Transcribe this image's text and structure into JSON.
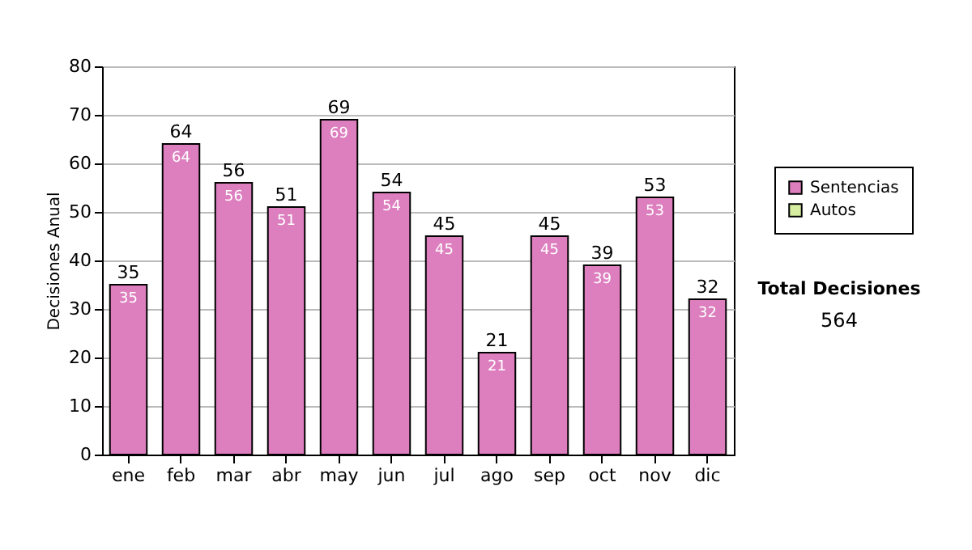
{
  "chart_data": {
    "type": "bar",
    "ylabel": "Decisiones Anual",
    "categories": [
      "ene",
      "feb",
      "mar",
      "abr",
      "may",
      "jun",
      "jul",
      "ago",
      "sep",
      "oct",
      "nov",
      "dic"
    ],
    "series": [
      {
        "name": "Sentencias",
        "color": "#dd7fbf",
        "values": [
          35,
          64,
          56,
          51,
          69,
          54,
          45,
          21,
          45,
          39,
          53,
          32
        ]
      },
      {
        "name": "Autos",
        "color": "#d8eea0",
        "values": [
          null,
          null,
          null,
          null,
          null,
          null,
          null,
          null,
          null,
          null,
          null,
          null
        ]
      }
    ],
    "data_labels": true,
    "totals": [
      "35",
      "64",
      "56",
      "51",
      "69",
      "54",
      "45",
      "21",
      "45",
      "39",
      "53",
      "32"
    ],
    "ylim": [
      0,
      80
    ],
    "yticks": [
      0,
      10,
      20,
      30,
      40,
      50,
      60,
      70,
      80
    ],
    "grid": "y",
    "legend": "right",
    "annotations": [
      "Total Decisiones",
      "564"
    ]
  }
}
